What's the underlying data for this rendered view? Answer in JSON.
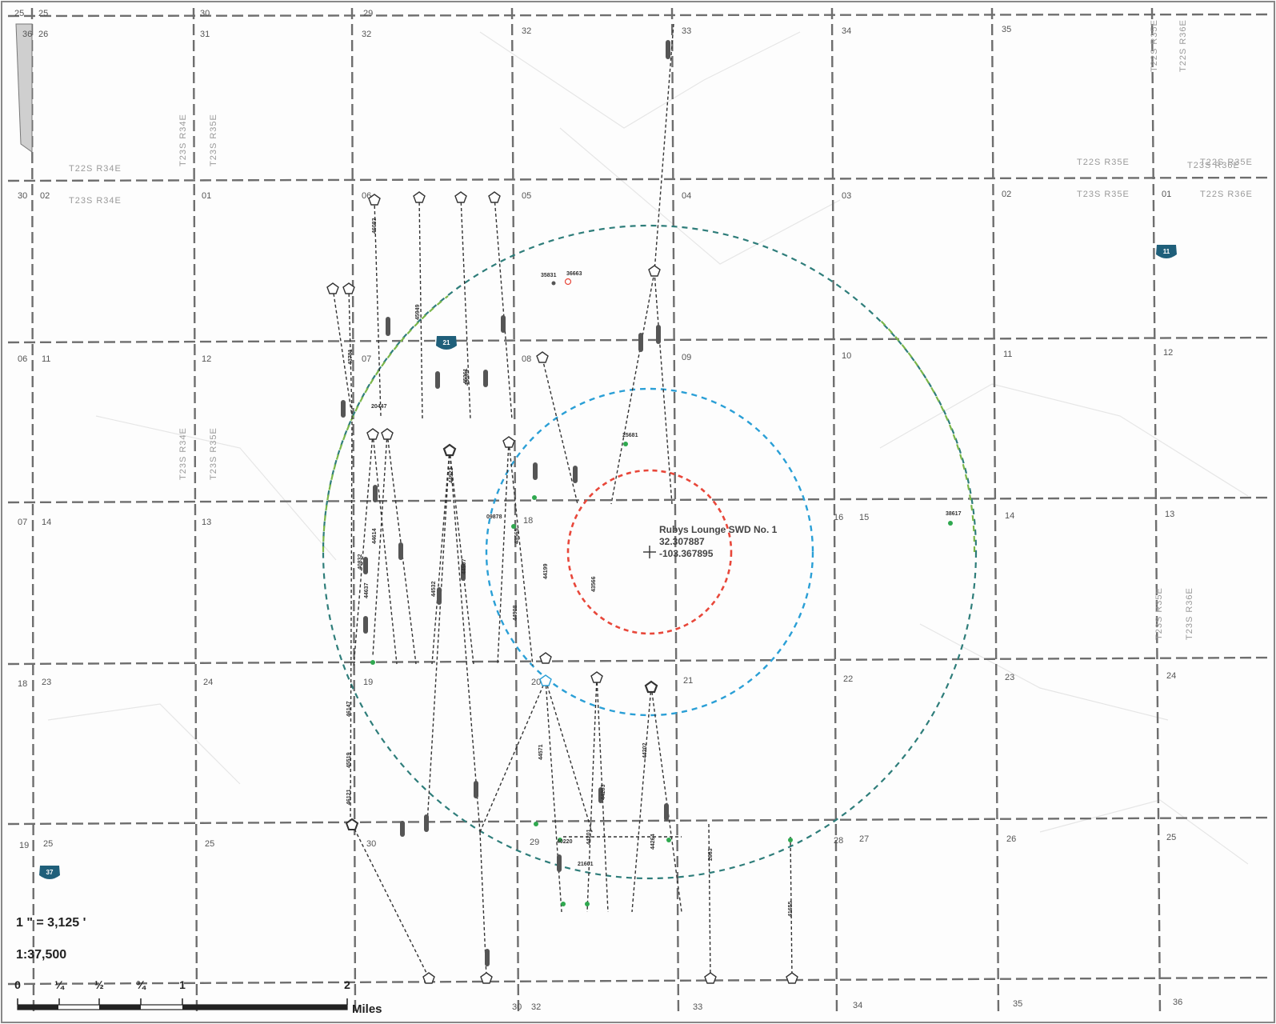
{
  "site": {
    "name": "Rubys Lounge SWD No. 1",
    "latitude": "32.307887",
    "longitude": "-103.367895"
  },
  "scale": {
    "inch_ratio": "1 \" = 3,125 '",
    "fraction": "1:37,500",
    "ticks": [
      "0",
      "¼",
      "½",
      "¾",
      "1",
      "2"
    ],
    "units": "Miles"
  },
  "colors": {
    "ring_inner": "#e8473a",
    "ring_middle": "#2a9fd6",
    "ring_outer_a": "#2e7d7a",
    "ring_outer_b": "#7ab648",
    "grid": "#6e6e6e",
    "highway": "#1f5f7a"
  },
  "highway_shields": [
    "11",
    "21",
    "37"
  ],
  "section_labels": [
    "25",
    "25",
    "26",
    "36",
    "30",
    "31",
    "29",
    "32",
    "32",
    "33",
    "34",
    "35",
    "30",
    "02",
    "01",
    "06",
    "05",
    "04",
    "03",
    "02",
    "01",
    "06",
    "11",
    "12",
    "07",
    "08",
    "09",
    "10",
    "11",
    "12",
    "07",
    "14",
    "13",
    "18",
    "16",
    "15",
    "14",
    "13",
    "18",
    "23",
    "24",
    "19",
    "20",
    "21",
    "22",
    "23",
    "24",
    "19",
    "25",
    "25",
    "30",
    "29",
    "28",
    "27",
    "26",
    "25",
    "30",
    "32",
    "33",
    "34",
    "35",
    "36",
    "31"
  ],
  "township_labels": [
    "T22S R34E",
    "T23S R34E",
    "T23S R34E",
    "T23S R35E",
    "T22S R35E",
    "T23S R35E",
    "T22S R35E",
    "T22S R36E",
    "T23S R36E",
    "T23S R35E",
    "T23S R36E",
    "T23S R34E",
    "T23S R35E",
    "T22S R35E",
    "T22S R36E"
  ],
  "well_labels": [
    "46083",
    "45949",
    "43573",
    "43781",
    "20447",
    "45361",
    "35831",
    "36663",
    "25681",
    "44923",
    "44614",
    "44637",
    "40832",
    "44532",
    "44907",
    "09878",
    "43565",
    "44199",
    "44908",
    "38617",
    "46147",
    "45519",
    "46121",
    "44571",
    "40220",
    "21601",
    "44201",
    "44202",
    "44203",
    "44264",
    "2663",
    "41655",
    "43566"
  ]
}
